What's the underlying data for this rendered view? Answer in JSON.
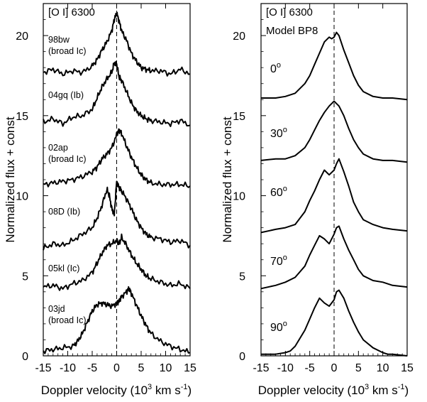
{
  "chart_data": [
    {
      "type": "line",
      "panel": "left",
      "title": "[O I] 6300",
      "xlabel": "Doppler velocity (10³ km s⁻¹)",
      "ylabel": "Normalized flux + const",
      "xlim": [
        -15,
        15
      ],
      "ylim": [
        0,
        22
      ],
      "xticks": [
        -15,
        -10,
        -5,
        0,
        5,
        10,
        15
      ],
      "yticks": [
        0,
        5,
        10,
        15,
        20
      ],
      "reference_line": {
        "x": 0,
        "style": "dashed"
      },
      "series": [
        {
          "name": "98bw (broad Ic)",
          "label_line1": "98bw",
          "label_line2": "(broad Ic)",
          "x": [
            -15,
            -13,
            -11,
            -9,
            -7,
            -5,
            -4,
            -3,
            -2,
            -1,
            -0.5,
            0,
            0.5,
            1,
            2,
            3,
            4,
            5,
            6,
            7,
            9,
            11,
            13,
            15
          ],
          "y": [
            17.7,
            17.9,
            17.6,
            17.8,
            17.7,
            18.1,
            18.5,
            19.1,
            19.6,
            20.3,
            21.0,
            21.4,
            20.9,
            20.3,
            19.7,
            18.9,
            18.4,
            18.0,
            17.9,
            17.8,
            17.8,
            17.6,
            17.9,
            17.6
          ]
        },
        {
          "name": "04gq (Ib)",
          "label": "04gq (Ib)",
          "x": [
            -15,
            -13,
            -11,
            -9,
            -7,
            -5,
            -4,
            -3,
            -2,
            -1,
            -0.5,
            0,
            0.5,
            1,
            2,
            3,
            4,
            5,
            6,
            7,
            9,
            11,
            13,
            15
          ],
          "y": [
            14.6,
            14.8,
            14.5,
            14.9,
            15.0,
            15.4,
            16.1,
            16.8,
            17.3,
            17.7,
            18.3,
            18.2,
            17.4,
            17.2,
            16.5,
            15.8,
            15.3,
            15.0,
            14.8,
            14.7,
            14.6,
            14.5,
            14.7,
            14.4
          ]
        },
        {
          "name": "02ap (broad Ic)",
          "label_line1": "02ap",
          "label_line2": "(broad Ic)",
          "x": [
            -15,
            -13,
            -11,
            -9,
            -7,
            -5,
            -4,
            -3,
            -2,
            -1,
            0,
            0.5,
            1,
            2,
            3,
            4,
            5,
            6,
            7,
            9,
            11,
            13,
            15
          ],
          "y": [
            10.7,
            10.8,
            10.9,
            11.0,
            11.2,
            11.5,
            11.8,
            12.3,
            12.6,
            13.0,
            13.8,
            14.1,
            13.9,
            13.1,
            12.4,
            11.8,
            11.3,
            11.0,
            10.8,
            10.7,
            10.7,
            10.7,
            10.6
          ]
        },
        {
          "name": "08D (Ib)",
          "label": "08D (Ib)",
          "x": [
            -15,
            -13,
            -11,
            -9,
            -7,
            -5,
            -4,
            -3,
            -2,
            -1.5,
            -1,
            -0.5,
            0,
            0.5,
            1,
            2,
            3,
            4,
            5,
            6,
            7,
            9,
            11,
            13,
            15
          ],
          "y": [
            6.7,
            7.0,
            6.9,
            7.2,
            7.6,
            8.0,
            8.6,
            9.4,
            10.4,
            10.0,
            9.2,
            8.8,
            10.9,
            10.5,
            10.3,
            9.8,
            9.2,
            8.5,
            8.0,
            7.6,
            7.4,
            7.3,
            7.1,
            7.2,
            6.9
          ]
        },
        {
          "name": "05kl (Ic)",
          "label": "05kl (Ic)",
          "x": [
            -15,
            -13,
            -11,
            -9,
            -7,
            -5,
            -4,
            -3,
            -2,
            -1,
            0,
            0.5,
            1,
            2,
            3,
            4,
            5,
            6,
            7,
            9,
            11,
            13,
            15
          ],
          "y": [
            4.3,
            4.4,
            4.2,
            4.5,
            4.7,
            5.2,
            5.8,
            6.4,
            6.9,
            7.0,
            7.2,
            7.0,
            7.4,
            6.9,
            6.3,
            5.8,
            5.4,
            5.0,
            4.8,
            4.6,
            4.4,
            4.5,
            4.2
          ]
        },
        {
          "name": "03jd (broad Ic)",
          "label_line1": "03jd",
          "label_line2": "(broad Ic)",
          "x": [
            -15,
            -13,
            -11,
            -9,
            -8,
            -7,
            -6,
            -5,
            -4,
            -3,
            -2,
            -1,
            0,
            0.5,
            1,
            2,
            2.5,
            3,
            4,
            5,
            6,
            7,
            9,
            11,
            13,
            15
          ],
          "y": [
            0.3,
            0.4,
            0.5,
            0.6,
            0.9,
            1.4,
            2.1,
            2.8,
            3.2,
            3.3,
            3.2,
            3.1,
            3.3,
            3.4,
            3.7,
            4.0,
            4.2,
            3.9,
            3.2,
            2.5,
            1.9,
            1.4,
            0.9,
            0.6,
            0.4,
            0.2
          ]
        }
      ]
    },
    {
      "type": "line",
      "panel": "right",
      "title": "[O I] 6300",
      "subtitle": "Model BP8",
      "xlabel": "Doppler velocity (10³ km s⁻¹)",
      "ylabel": "Normalized flux + const",
      "xlim": [
        -15,
        15
      ],
      "ylim": [
        0,
        22
      ],
      "xticks": [
        -15,
        -10,
        -5,
        0,
        5,
        10,
        15
      ],
      "yticks": [
        0,
        5,
        10,
        15,
        20
      ],
      "reference_line": {
        "x": 0,
        "style": "dashed"
      },
      "series": [
        {
          "name": "0°",
          "angle": "0",
          "unit": "o",
          "x": [
            -15,
            -12,
            -10,
            -8,
            -6,
            -5,
            -4,
            -3,
            -2,
            -1,
            -0.5,
            0,
            0.5,
            1,
            2,
            3,
            4,
            5,
            6,
            8,
            10,
            12,
            15
          ],
          "y": [
            16.1,
            16.1,
            16.2,
            16.4,
            17.0,
            17.5,
            18.2,
            18.9,
            19.6,
            19.9,
            19.8,
            19.9,
            20.2,
            20.0,
            19.1,
            18.3,
            17.5,
            16.9,
            16.5,
            16.2,
            16.1,
            16.1,
            16.0
          ]
        },
        {
          "name": "30°",
          "angle": "30",
          "unit": "o",
          "x": [
            -15,
            -12,
            -10,
            -8,
            -6,
            -5,
            -4,
            -3,
            -2,
            -1,
            0,
            1,
            2,
            3,
            4,
            5,
            6,
            8,
            10,
            12,
            15
          ],
          "y": [
            12.2,
            12.3,
            12.3,
            12.5,
            13.0,
            13.5,
            14.1,
            14.7,
            15.2,
            15.6,
            15.9,
            15.6,
            15.0,
            14.2,
            13.5,
            13.0,
            12.6,
            12.3,
            12.2,
            12.2,
            12.1
          ]
        },
        {
          "name": "60°",
          "angle": "60",
          "unit": "o",
          "x": [
            -15,
            -12,
            -10,
            -8,
            -6,
            -5,
            -4,
            -3,
            -2,
            -1,
            0,
            0.5,
            1,
            2,
            3,
            4,
            5,
            6,
            8,
            10,
            12,
            15
          ],
          "y": [
            7.7,
            7.9,
            8.0,
            8.2,
            9.0,
            9.7,
            10.3,
            11.0,
            11.6,
            11.3,
            11.6,
            12.0,
            12.3,
            11.5,
            10.6,
            9.6,
            9.0,
            8.5,
            8.2,
            8.0,
            7.9,
            7.8
          ]
        },
        {
          "name": "70°",
          "angle": "70",
          "unit": "o",
          "x": [
            -15,
            -12,
            -10,
            -8,
            -6,
            -5,
            -4,
            -3,
            -2,
            -1,
            0,
            0.5,
            1,
            2,
            3,
            4,
            5,
            6,
            8,
            10,
            12,
            15
          ],
          "y": [
            4.2,
            4.4,
            4.6,
            4.9,
            5.6,
            6.3,
            6.9,
            7.5,
            7.3,
            7.0,
            7.6,
            8.0,
            8.1,
            7.3,
            6.6,
            6.0,
            5.4,
            5.0,
            4.7,
            4.6,
            4.4,
            4.3
          ]
        },
        {
          "name": "90°",
          "angle": "90",
          "unit": "o",
          "x": [
            -15,
            -12,
            -10,
            -9,
            -8,
            -6,
            -5,
            -4,
            -3,
            -2,
            -1,
            0,
            0.5,
            1,
            2,
            3,
            4,
            5,
            6,
            8,
            10,
            11,
            12,
            15
          ],
          "y": [
            0.1,
            0.1,
            0.2,
            0.3,
            0.6,
            1.6,
            2.3,
            3.0,
            3.6,
            3.3,
            3.1,
            3.5,
            4.0,
            4.1,
            3.6,
            2.8,
            2.1,
            1.5,
            1.0,
            0.5,
            0.2,
            0.1,
            0.1,
            0.0
          ]
        }
      ]
    }
  ]
}
